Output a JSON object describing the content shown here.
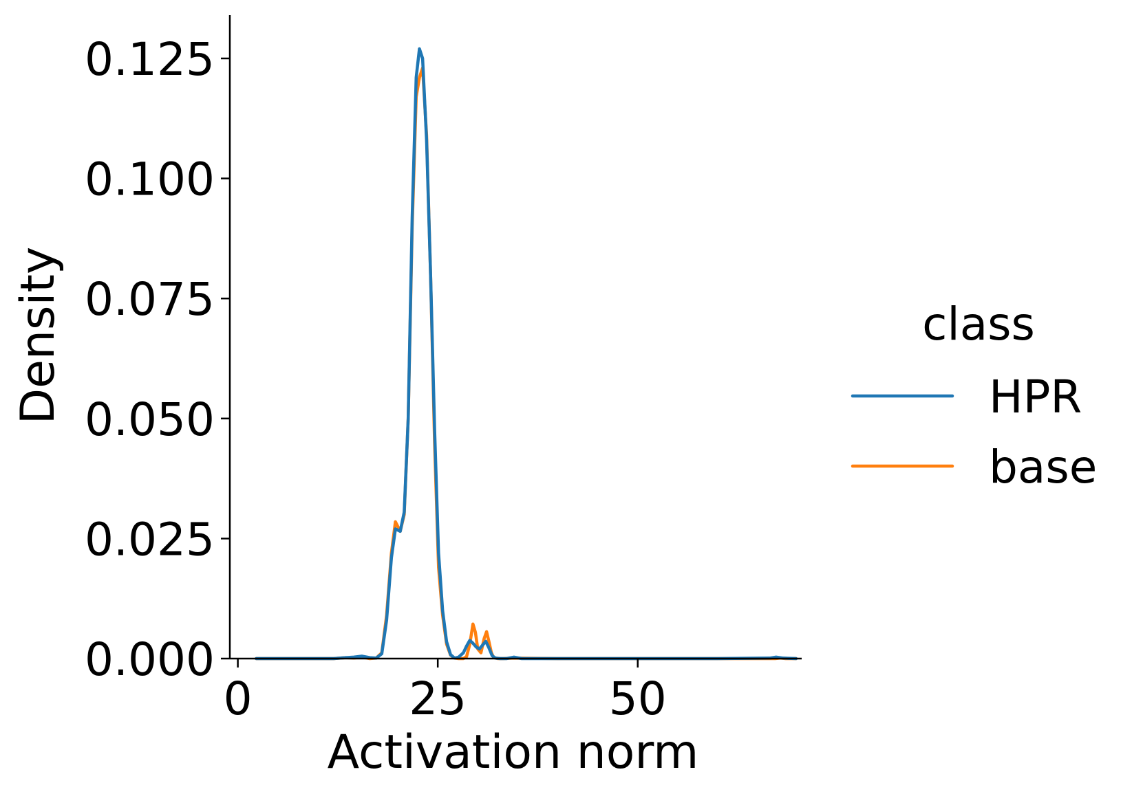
{
  "chart_data": {
    "type": "line",
    "title": "",
    "xlabel": "Activation norm",
    "ylabel": "Density",
    "xlim": [
      -1,
      70.5
    ],
    "ylim": [
      0,
      0.134
    ],
    "xticks": [
      0,
      25,
      50
    ],
    "xtick_labels": [
      "0",
      "25",
      "50"
    ],
    "yticks": [
      0,
      0.025,
      0.05,
      0.075,
      0.1,
      0.125
    ],
    "ytick_labels": [
      "0.000",
      "0.025",
      "0.050",
      "0.075",
      "0.100",
      "0.125"
    ],
    "grid": false,
    "legend": {
      "title": "class",
      "placement": "right"
    },
    "series": [
      {
        "name": "base",
        "color": "#ff7f0e",
        "x": [
          2.3,
          12,
          13.5,
          14.5,
          15.5,
          16.5,
          17.3,
          18,
          18.6,
          19.2,
          19.7,
          20.3,
          20.8,
          21.3,
          21.8,
          22.3,
          22.7,
          23.1,
          23.6,
          24.1,
          24.6,
          25.1,
          25.6,
          26.1,
          26.6,
          27.1,
          27.6,
          28.2,
          28.6,
          29,
          29.4,
          29.7,
          30,
          30.4,
          30.8,
          31.1,
          31.4,
          31.7,
          32,
          32.5,
          33.2,
          34.5,
          40,
          50,
          60,
          67.2,
          67.8,
          68.5,
          69.8
        ],
        "values": [
          0,
          0,
          0.0002,
          0.0001,
          0.0003,
          0,
          0.0001,
          0.0012,
          0.009,
          0.022,
          0.0285,
          0.0265,
          0.03,
          0.05,
          0.09,
          0.117,
          0.121,
          0.123,
          0.109,
          0.08,
          0.045,
          0.019,
          0.009,
          0.003,
          0.0007,
          0.0001,
          0,
          0,
          0.0004,
          0.003,
          0.0072,
          0.0055,
          0.002,
          0.0012,
          0.0042,
          0.0056,
          0.0035,
          0.0012,
          0.0002,
          0,
          0,
          0.0001,
          0,
          0,
          0,
          0,
          0.0001,
          0,
          0
        ]
      },
      {
        "name": "HPR",
        "color": "#1f77b4",
        "x": [
          2.3,
          12,
          13.5,
          14.5,
          15.5,
          16.5,
          17.3,
          18,
          18.6,
          19.2,
          19.7,
          20.3,
          20.8,
          21.3,
          21.8,
          22.3,
          22.7,
          23.1,
          23.6,
          24.1,
          24.6,
          25.1,
          25.6,
          26.1,
          26.6,
          27.1,
          27.6,
          28.2,
          28.6,
          29,
          29.4,
          29.8,
          30.2,
          30.6,
          31,
          31.4,
          31.8,
          32.2,
          32.8,
          33.6,
          34.5,
          35.5,
          40,
          50,
          60,
          66.5,
          67.3,
          68.2,
          69.8
        ],
        "values": [
          0,
          0,
          0.0002,
          0.0003,
          0.0005,
          0.0002,
          0.0001,
          0.001,
          0.008,
          0.021,
          0.027,
          0.0265,
          0.0305,
          0.05,
          0.092,
          0.121,
          0.127,
          0.125,
          0.108,
          0.08,
          0.048,
          0.022,
          0.01,
          0.0035,
          0.0008,
          0.0001,
          0.0003,
          0.0012,
          0.0026,
          0.0038,
          0.0032,
          0.0024,
          0.002,
          0.0028,
          0.0036,
          0.0022,
          0.0006,
          0.0001,
          0,
          0,
          0.0003,
          0,
          0,
          0,
          0,
          0.0001,
          0.0003,
          0.0001,
          0
        ]
      }
    ]
  }
}
